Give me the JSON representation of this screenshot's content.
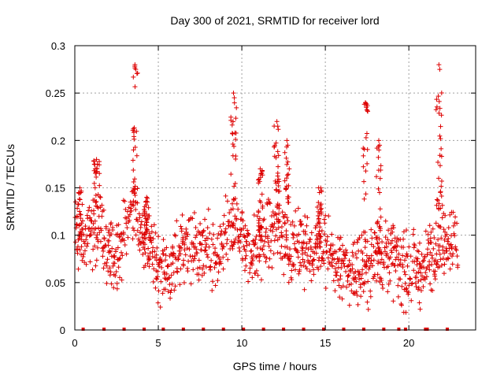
{
  "chart_data": {
    "type": "scatter",
    "title": "Day 300 of 2021, SRMTID for receiver lord",
    "xlabel": "GPS time / hours",
    "ylabel": "SRMTID / TECUs",
    "xlim": [
      0,
      24
    ],
    "ylim": [
      0,
      0.3
    ],
    "xticks": [
      0,
      5,
      10,
      15,
      20
    ],
    "xtick_labels": [
      "0",
      "5",
      "10",
      "15",
      "20"
    ],
    "yticks": [
      0,
      0.05,
      0.1,
      0.15,
      0.2,
      0.25,
      0.3
    ],
    "ytick_labels": [
      "0",
      "0.05",
      "0.1",
      "0.15",
      "0.2",
      "0.25",
      "0.3"
    ],
    "grid": true,
    "marker": "+",
    "color": "#dd0000",
    "zero_markers_x": [
      0.5,
      1.75,
      2.95,
      4.15,
      5.3,
      6.5,
      7.7,
      8.9,
      10.1,
      11.3,
      12.5,
      13.7,
      14.9,
      16.1,
      17.3,
      18.5,
      19.4,
      19.8,
      21.0,
      21.1,
      22.3
    ],
    "approx_envelope": {
      "x": [
        0,
        0.5,
        1,
        1.5,
        2,
        2.5,
        3,
        3.5,
        4,
        4.5,
        5,
        5.5,
        6,
        6.5,
        7,
        7.5,
        8,
        8.5,
        9,
        9.5,
        10,
        10.5,
        11,
        11.5,
        12,
        12.5,
        13,
        13.5,
        14,
        14.5,
        15,
        15.5,
        16,
        16.5,
        17,
        17.5,
        18,
        18.5,
        19,
        19.5,
        20,
        20.5,
        21,
        21.5,
        22,
        22.5,
        23
      ],
      "center": [
        0.1,
        0.09,
        0.1,
        0.12,
        0.075,
        0.08,
        0.1,
        0.14,
        0.1,
        0.09,
        0.065,
        0.065,
        0.07,
        0.09,
        0.085,
        0.08,
        0.085,
        0.07,
        0.1,
        0.11,
        0.1,
        0.08,
        0.09,
        0.1,
        0.11,
        0.1,
        0.085,
        0.09,
        0.08,
        0.09,
        0.09,
        0.07,
        0.065,
        0.06,
        0.065,
        0.065,
        0.08,
        0.08,
        0.08,
        0.065,
        0.06,
        0.06,
        0.065,
        0.09,
        0.1,
        0.1,
        0.09
      ],
      "peak_x": [
        0.3,
        1.3,
        3.6,
        4.3,
        9.5,
        11.1,
        12.1,
        12.7,
        14.6,
        17.4,
        18.2,
        21.8
      ],
      "peak_y": [
        0.15,
        0.18,
        0.28,
        0.14,
        0.25,
        0.17,
        0.22,
        0.2,
        0.15,
        0.24,
        0.2,
        0.28
      ]
    }
  }
}
